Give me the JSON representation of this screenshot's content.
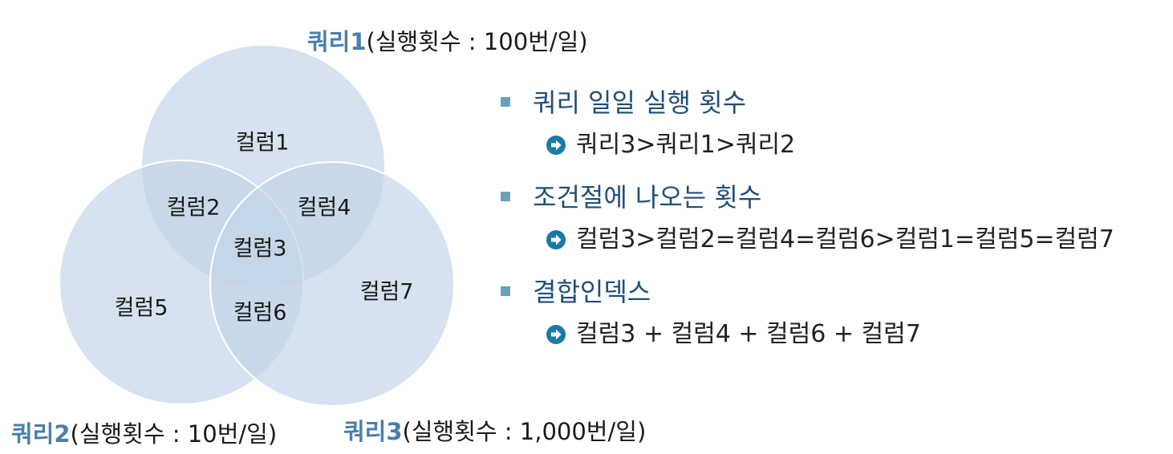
{
  "queries": [
    {
      "name": "쿼리1",
      "detail": "(실행횟수 : 100번/일)"
    },
    {
      "name": "쿼리2",
      "detail": "(실행횟수 : 10번/일)"
    },
    {
      "name": "쿼리3",
      "detail": "(실행횟수 : 1,000번/일)"
    }
  ],
  "columns": [
    "컬럼1",
    "컬럼2",
    "컬럼3",
    "컬럼4",
    "컬럼5",
    "컬럼6",
    "컬럼7"
  ],
  "sections": [
    {
      "heading": "쿼리 일일 실행 횟수",
      "detail": "쿼리3>쿼리1>쿼리2"
    },
    {
      "heading": "조건절에 나오는 횟수",
      "detail": "컬럼3>컬럼2=컬럼4=컬럼6>컬럼1=컬럼5=컬럼7"
    },
    {
      "heading": "결합인덱스",
      "detail": "컬럼3 + 컬럼4 + 컬럼6 + 컬럼7"
    }
  ],
  "colors": {
    "circle_fill": "#c2d4e8",
    "circle_stroke": "#ffffff",
    "query_name": "#4a7fa8",
    "heading": "#1f4e79",
    "bullet": "#6aa0b8",
    "arrow": "#1b7aa6"
  }
}
